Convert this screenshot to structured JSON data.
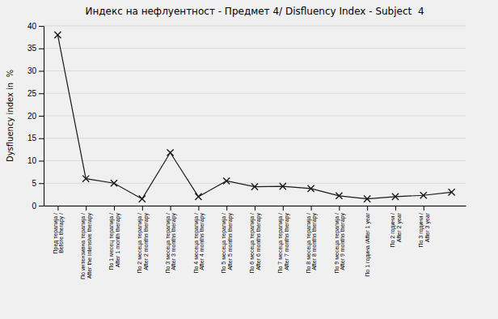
{
  "chart_data": {
    "type": "line",
    "title": "Индекс на нефлуентност - Предмет 4/ Disfluency Index - Subject  4",
    "ylabel": "Dysfluency index in  %",
    "categories": [
      "Пред терапија /\nBefore therapy /",
      "По интензивна терапија /\nAfter the intensive therapy",
      "По 1 месец терапија /\nAfter 1 month therapy",
      "По 2 месеца терапија /\nAfter 2 months therapy",
      "По 3 месеца терапија /\nAfter 3 months therapy",
      "По 4 месеца терапија /\nAfter 4 months therapy",
      "По 5 месеца терапија /\nAfter 5 months therapy",
      "По 6 месеца терапија /\nAfter 6 months therapy",
      "По 7 месеца терапија /\nAfter 7 months therapy",
      "По 8 месеца терапија /\nAfter 8 months therapy",
      "По 9 месеца терапија /\nAfter 9 months therapy",
      "По 1 година /After 1 year",
      "По 2 години /\nAfter 2 year",
      "По 3 години /\nAfter 3 year",
      null
    ],
    "values": [
      38.0,
      6.0,
      5.0,
      1.5,
      11.8,
      2.0,
      5.5,
      4.2,
      4.3,
      3.8,
      2.2,
      1.5,
      2.0,
      2.3,
      3.0
    ],
    "color": "#1a1a1a",
    "marker": "x",
    "ylim": [
      0,
      40
    ],
    "yticks": [
      0,
      5,
      10,
      15,
      20,
      25,
      30,
      35,
      40
    ],
    "grid": true
  }
}
